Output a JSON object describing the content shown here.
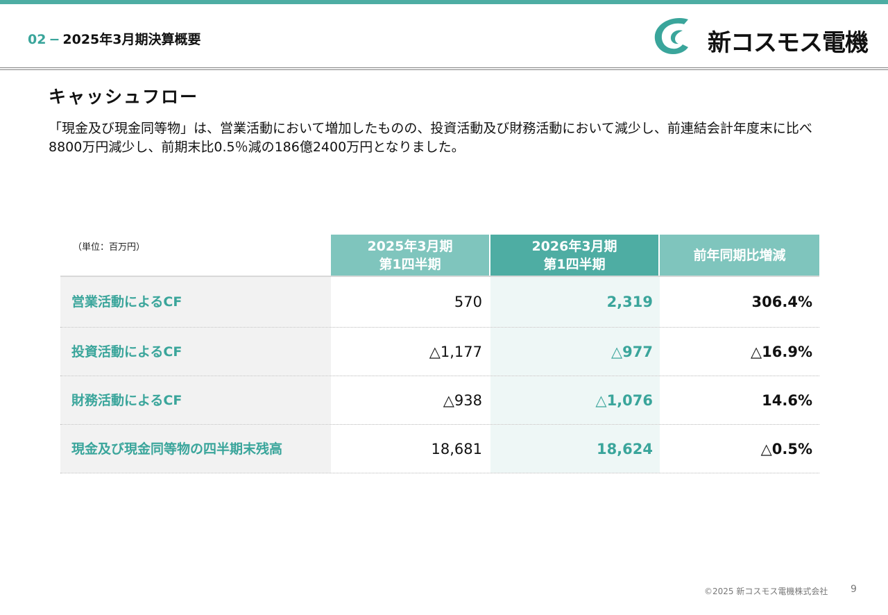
{
  "header": {
    "section_number": "02",
    "dash": "−",
    "section_title": "2025年3月期決算概要",
    "logo_text": "新コスモス電機",
    "colors": {
      "accent": "#4dada3",
      "header_light": "#7fc5bd",
      "header_dark": "#4eada3",
      "highlight_bg": "#eef7f6"
    }
  },
  "content": {
    "heading": "キャッシュフロー",
    "description": "「現金及び現金同等物」は、営業活動において増加したものの、投資活動及び財務活動において減少し、前連結会計年度末に比べ8800万円減少し、前期末比0.5％減の186億2400万円となりました。"
  },
  "table": {
    "unit_label": "（単位：百万円）",
    "columns": [
      {
        "line1": "2025年3月期",
        "line2": "第1四半期"
      },
      {
        "line1": "2026年3月期",
        "line2": "第1四半期"
      },
      {
        "line1": "前年同期比増減",
        "line2": ""
      }
    ],
    "rows": [
      {
        "label": "営業活動によるCF",
        "prev": "570",
        "curr": "2,319",
        "change": "306.4%"
      },
      {
        "label": "投資活動によるCF",
        "prev": "△1,177",
        "curr": "△977",
        "change": "△16.9%"
      },
      {
        "label": "財務活動によるCF",
        "prev": "△938",
        "curr": "△1,076",
        "change": "14.6%"
      },
      {
        "label": "現金及び現金同等物の四半期末残高",
        "prev": "18,681",
        "curr": "18,624",
        "change": "△0.5%"
      }
    ]
  },
  "footer": {
    "copyright": "©2025 新コスモス電機株式会社",
    "page_number": "9"
  }
}
